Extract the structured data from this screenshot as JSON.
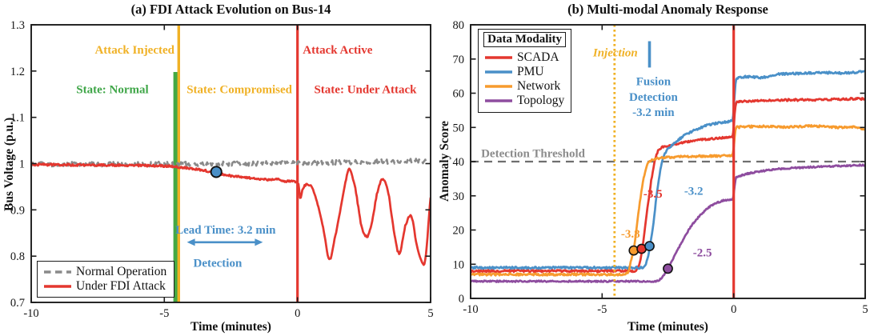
{
  "figure": {
    "background": "#ffffff"
  },
  "chart_data": [
    {
      "type": "line",
      "title": "(a) FDI Attack Evolution on Bus-14",
      "xlabel": "Time (minutes)",
      "ylabel": "Bus Voltage (p.u.)",
      "xlim": [
        -10,
        5
      ],
      "ylim": [
        0.7,
        1.3
      ],
      "xticks": [
        -10,
        -5,
        0,
        5
      ],
      "yticks": [
        0.7,
        0.8,
        0.9,
        1,
        1.1,
        1.2,
        1.3
      ],
      "series": [
        {
          "name": "Normal Operation",
          "color": "#8a8a8a",
          "style": "dashed",
          "width": 2.6,
          "noise": 0.005,
          "points": [
            [
              -10,
              0.999
            ],
            [
              -7,
              0.9985
            ],
            [
              -4,
              0.9995
            ],
            [
              -1,
              1.0005
            ],
            [
              1,
              1.002
            ],
            [
              3,
              1.004
            ],
            [
              5,
              1.006
            ]
          ]
        },
        {
          "name": "Under FDI Attack",
          "color": "#e4372f",
          "style": "solid",
          "width": 2.7,
          "noise": 0.0022,
          "points": [
            [
              -10,
              0.998
            ],
            [
              -8,
              0.997
            ],
            [
              -6,
              0.996
            ],
            [
              -4.7,
              0.994
            ],
            [
              -4.4,
              0.992
            ],
            [
              -4.0,
              0.989
            ],
            [
              -3.5,
              0.985
            ],
            [
              -3.0,
              0.979
            ],
            [
              -2.6,
              0.9745
            ],
            [
              -2.2,
              0.9715
            ],
            [
              -1.8,
              0.969
            ],
            [
              -1.4,
              0.9665
            ],
            [
              -1.05,
              0.9655
            ],
            [
              -0.85,
              0.9675
            ],
            [
              -0.5,
              0.9625
            ],
            [
              -0.15,
              0.961
            ],
            [
              0.04,
              0.955
            ],
            [
              0.1,
              0.926
            ],
            [
              0.22,
              0.948
            ],
            [
              0.38,
              0.955
            ],
            [
              0.55,
              0.948
            ],
            [
              0.75,
              0.915
            ],
            [
              1.0,
              0.85
            ],
            [
              1.2,
              0.792
            ],
            [
              1.45,
              0.852
            ],
            [
              1.7,
              0.928
            ],
            [
              1.95,
              0.988
            ],
            [
              2.15,
              0.952
            ],
            [
              2.45,
              0.855
            ],
            [
              2.62,
              0.843
            ],
            [
              2.78,
              0.868
            ],
            [
              3.0,
              0.938
            ],
            [
              3.2,
              0.966
            ],
            [
              3.42,
              0.935
            ],
            [
              3.6,
              0.862
            ],
            [
              3.82,
              0.806
            ],
            [
              4.05,
              0.865
            ],
            [
              4.25,
              0.888
            ],
            [
              4.5,
              0.82
            ],
            [
              4.75,
              0.782
            ],
            [
              5,
              0.925
            ]
          ]
        }
      ],
      "vbars": [
        {
          "x0": -4.66,
          "x1": -4.49,
          "y0": 0.7,
          "y1": 1.198,
          "color": "#44a944"
        }
      ],
      "vlines": [
        {
          "x": -4.46,
          "color": "#f0b125",
          "width": 3.4,
          "style": "solid"
        },
        {
          "x": 0,
          "color": "#e4372f",
          "width": 3.2,
          "style": "solid"
        }
      ],
      "annotations": [
        {
          "text": "Attack Injected",
          "x": -4.62,
          "y": 1.238,
          "color": "#f0b125",
          "anchor": "end"
        },
        {
          "text": "Attack Active",
          "x": 0.2,
          "y": 1.238,
          "color": "#e4372f",
          "anchor": "start"
        },
        {
          "text": "State: Normal",
          "x": -6.95,
          "y": 1.152,
          "color": "#3fa648",
          "anchor": "middle"
        },
        {
          "text": "State: Compromised",
          "x": -2.18,
          "y": 1.152,
          "color": "#f0b125",
          "anchor": "middle"
        },
        {
          "text": "State: Under Attack",
          "x": 2.55,
          "y": 1.152,
          "color": "#e4372f",
          "anchor": "middle"
        },
        {
          "text": "Lead Time: 3.2 min",
          "x": -2.7,
          "y": 0.849,
          "color": "#4a90c8",
          "anchor": "middle"
        },
        {
          "text": "Detection",
          "x": -3.0,
          "y": 0.777,
          "color": "#4a90c8",
          "anchor": "middle"
        }
      ],
      "arrow": {
        "x1": -4.15,
        "x2": -1.3,
        "y": 0.83,
        "color": "#4a90c8"
      },
      "markers": [
        {
          "x": -3.05,
          "y": 0.982,
          "color": "#4a90c8"
        }
      ],
      "legend": {
        "position": "bottom-left",
        "entries": [
          {
            "label": "Normal Operation",
            "color": "#8a8a8a",
            "style": "dashed"
          },
          {
            "label": "Under FDI Attack",
            "color": "#e4372f",
            "style": "solid"
          }
        ]
      }
    },
    {
      "type": "line",
      "title": "(b) Multi-modal Anomaly Response",
      "xlabel": "Time (minutes)",
      "ylabel": "Anomaly Score",
      "xlim": [
        -10,
        5
      ],
      "ylim": [
        0,
        80
      ],
      "xticks": [
        -10,
        -5,
        0,
        5
      ],
      "yticks": [
        0,
        10,
        20,
        30,
        40,
        50,
        60,
        70,
        80
      ],
      "series": [
        {
          "name": "SCADA",
          "color": "#e4372f",
          "style": "solid",
          "width": 2.7,
          "noise": 0.3,
          "points": [
            [
              -10,
              8
            ],
            [
              -3.75,
              8
            ],
            [
              -3.6,
              9.5
            ],
            [
              -3.5,
              13
            ],
            [
              -3.4,
              19
            ],
            [
              -3.25,
              28
            ],
            [
              -3.1,
              36
            ],
            [
              -2.95,
              41.5
            ],
            [
              -2.8,
              43.8
            ],
            [
              -2.4,
              44.8
            ],
            [
              -1.9,
              45.6
            ],
            [
              -1.4,
              46.2
            ],
            [
              -0.8,
              46.7
            ],
            [
              -0.05,
              47.3
            ],
            [
              0.1,
              57.3
            ],
            [
              0.8,
              57.8
            ],
            [
              2,
              58
            ],
            [
              3.2,
              58.1
            ],
            [
              4.2,
              58.3
            ],
            [
              5,
              58.4
            ]
          ]
        },
        {
          "name": "PMU",
          "color": "#4a90c8",
          "style": "solid",
          "width": 2.7,
          "noise": 0.3,
          "points": [
            [
              -10,
              9
            ],
            [
              -3.45,
              9
            ],
            [
              -3.3,
              11
            ],
            [
              -3.2,
              14.5
            ],
            [
              -3.05,
              22
            ],
            [
              -2.9,
              32
            ],
            [
              -2.75,
              39
            ],
            [
              -2.6,
              42.5
            ],
            [
              -2.3,
              45
            ],
            [
              -1.9,
              47.5
            ],
            [
              -1.4,
              49.5
            ],
            [
              -0.9,
              50.8
            ],
            [
              -0.4,
              51.5
            ],
            [
              -0.05,
              52
            ],
            [
              0.1,
              64.3
            ],
            [
              0.5,
              64.8
            ],
            [
              1,
              64.6
            ],
            [
              1.8,
              65.6
            ],
            [
              2.6,
              65.8
            ],
            [
              3.4,
              66
            ],
            [
              4.2,
              65.9
            ],
            [
              5,
              66.4
            ]
          ]
        },
        {
          "name": "Network",
          "color": "#f79b2e",
          "style": "solid",
          "width": 2.7,
          "noise": 0.3,
          "points": [
            [
              -10,
              7
            ],
            [
              -4.15,
              7
            ],
            [
              -4.0,
              8
            ],
            [
              -3.9,
              11
            ],
            [
              -3.8,
              14
            ],
            [
              -3.7,
              20
            ],
            [
              -3.55,
              29
            ],
            [
              -3.4,
              36
            ],
            [
              -3.25,
              39.5
            ],
            [
              -3.0,
              40.8
            ],
            [
              -2.5,
              41.2
            ],
            [
              -1.8,
              41.5
            ],
            [
              -1.0,
              41.6
            ],
            [
              -0.05,
              41.8
            ],
            [
              0.1,
              50
            ],
            [
              1,
              50.3
            ],
            [
              2,
              50.1
            ],
            [
              3,
              50.4
            ],
            [
              4,
              50
            ],
            [
              4.6,
              50.1
            ],
            [
              5,
              49.2
            ]
          ]
        },
        {
          "name": "Topology",
          "color": "#8e4d9f",
          "style": "solid",
          "width": 2.7,
          "noise": 0.22,
          "points": [
            [
              -10,
              5
            ],
            [
              -2.95,
              5
            ],
            [
              -2.75,
              6
            ],
            [
              -2.5,
              8.7
            ],
            [
              -2.25,
              12.5
            ],
            [
              -2.0,
              16
            ],
            [
              -1.75,
              19.5
            ],
            [
              -1.5,
              22.3
            ],
            [
              -1.25,
              24.5
            ],
            [
              -1.0,
              26.3
            ],
            [
              -0.7,
              27.7
            ],
            [
              -0.4,
              28.6
            ],
            [
              -0.05,
              29
            ],
            [
              0.1,
              35.3
            ],
            [
              0.4,
              36.2
            ],
            [
              0.9,
              37
            ],
            [
              1.5,
              37.7
            ],
            [
              2.2,
              38.1
            ],
            [
              3,
              38.4
            ],
            [
              4,
              38.7
            ],
            [
              5,
              39
            ]
          ]
        }
      ],
      "vlines": [
        {
          "x": -4.53,
          "color": "#f0b125",
          "width": 2.8,
          "style": "dotted"
        },
        {
          "x": 0,
          "color": "#e4372f",
          "width": 3.2,
          "style": "solid"
        }
      ],
      "hlines": [
        {
          "y": 40,
          "color": "#6f6f6f",
          "width": 2.2,
          "style": "dashed"
        }
      ],
      "fusion_tick": {
        "x": -3.2,
        "y1": 67.5,
        "y2": 75.2,
        "color": "#4a90c8"
      },
      "annotations": [
        {
          "text": "Injection",
          "x": -4.5,
          "y": 70.8,
          "color": "#f0b125",
          "anchor": "middle",
          "italic": true
        },
        {
          "text": "Fusion",
          "x": -3.05,
          "y": 62.3,
          "color": "#4a90c8",
          "anchor": "middle"
        },
        {
          "text": "Detection",
          "x": -3.05,
          "y": 57.8,
          "color": "#4a90c8",
          "anchor": "middle"
        },
        {
          "text": "-3.2 min",
          "x": -3.05,
          "y": 53.3,
          "color": "#4a90c8",
          "anchor": "middle"
        },
        {
          "text": "Detection Threshold",
          "x": -9.6,
          "y": 41.3,
          "color": "#8c8c8c",
          "anchor": "start"
        },
        {
          "text": "-3.5",
          "x": -3.07,
          "y": 29.5,
          "color": "#e4372f",
          "anchor": "middle"
        },
        {
          "text": "-3.2",
          "x": -1.52,
          "y": 30.3,
          "color": "#4a90c8",
          "anchor": "middle"
        },
        {
          "text": "-3.8",
          "x": -3.92,
          "y": 17.8,
          "color": "#f79b2e",
          "anchor": "middle"
        },
        {
          "text": "-2.5",
          "x": -1.19,
          "y": 12.3,
          "color": "#8e4d9f",
          "anchor": "middle"
        }
      ],
      "markers": [
        {
          "x": -3.8,
          "y": 14,
          "color": "#f79b2e"
        },
        {
          "x": -3.5,
          "y": 14.5,
          "color": "#e4372f"
        },
        {
          "x": -3.2,
          "y": 15.3,
          "color": "#4a90c8"
        },
        {
          "x": -2.5,
          "y": 8.7,
          "color": "#8e4d9f"
        }
      ],
      "legend": {
        "title": "Data Modality",
        "position": "top-left",
        "entries": [
          {
            "label": "SCADA",
            "color": "#e4372f",
            "style": "solid"
          },
          {
            "label": "PMU",
            "color": "#4a90c8",
            "style": "solid"
          },
          {
            "label": "Network",
            "color": "#f79b2e",
            "style": "solid"
          },
          {
            "label": "Topology",
            "color": "#8e4d9f",
            "style": "solid"
          }
        ]
      }
    }
  ]
}
